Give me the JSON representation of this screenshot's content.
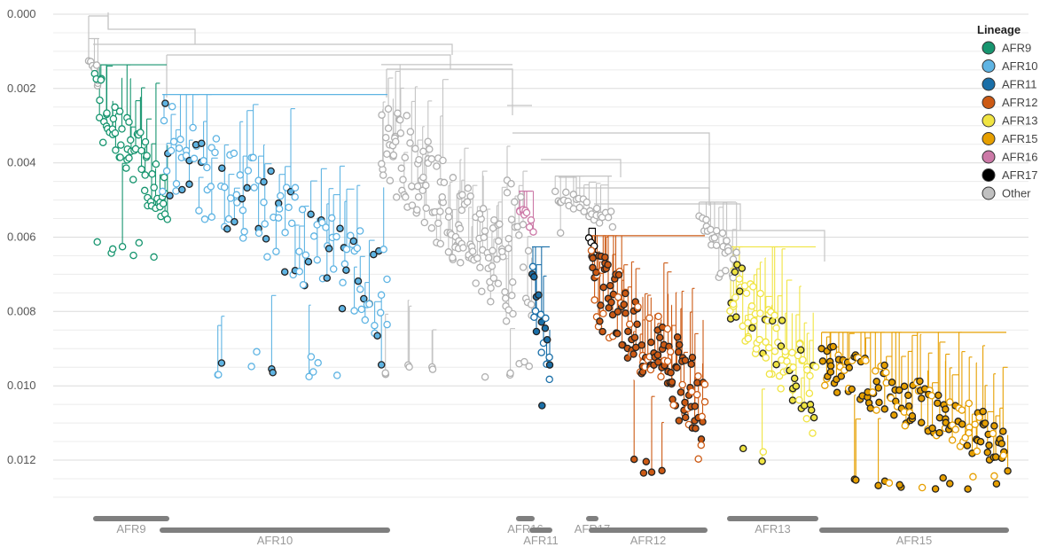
{
  "chart_data": {
    "type": "phylogenetic-tree",
    "y_axis": {
      "orientation": "inverted",
      "lim": [
        0.0,
        0.0137
      ],
      "ticks": [
        0.0,
        0.002,
        0.004,
        0.006,
        0.008,
        0.01,
        0.012
      ],
      "tick_labels": [
        "0.000",
        "0.002",
        "0.004",
        "0.006",
        "0.008",
        "0.010",
        "0.012"
      ],
      "grid": true
    },
    "x_axis": {
      "lim": [
        0,
        1182
      ]
    },
    "legend": {
      "title": "Lineage",
      "placement": "top-right",
      "entries": [
        {
          "name": "AFR9",
          "color": "#17956f"
        },
        {
          "name": "AFR10",
          "color": "#5fb4e3"
        },
        {
          "name": "AFR11",
          "color": "#1a6fa8"
        },
        {
          "name": "AFR12",
          "color": "#cc5a14"
        },
        {
          "name": "AFR13",
          "color": "#f0e442"
        },
        {
          "name": "AFR15",
          "color": "#e69f00"
        },
        {
          "name": "AFR16",
          "color": "#cc79a7"
        },
        {
          "name": "AFR17",
          "color": "#000000"
        },
        {
          "name": "Other",
          "color": "#c0c0c0"
        }
      ]
    },
    "clades": [
      {
        "name": "AFR9",
        "x0": 108,
        "x1": 188,
        "row": 0,
        "color": "#17956f",
        "tip_range": [
          0.0016,
          0.0066
        ],
        "n_tips": 70
      },
      {
        "name": "AFR10",
        "x0": 183,
        "x1": 437,
        "row": 1,
        "color": "#5fb4e3",
        "tip_range": [
          0.0024,
          0.0098
        ],
        "n_tips": 150
      },
      {
        "name": "AFR16",
        "x0": 585,
        "x1": 600,
        "row": 0,
        "color": "#cc79a7",
        "tip_range": [
          0.005,
          0.006
        ],
        "n_tips": 10
      },
      {
        "name": "AFR11",
        "x0": 600,
        "x1": 620,
        "row": 1,
        "color": "#1a6fa8",
        "tip_range": [
          0.0065,
          0.0108
        ],
        "n_tips": 20
      },
      {
        "name": "AFR17",
        "x0": 664,
        "x1": 672,
        "row": 0,
        "color": "#000000",
        "tip_range": [
          0.006,
          0.0067
        ],
        "n_tips": 4
      },
      {
        "name": "AFR12",
        "x0": 667,
        "x1": 795,
        "row": 1,
        "color": "#cc5a14",
        "tip_range": [
          0.0062,
          0.0125
        ],
        "n_tips": 150
      },
      {
        "name": "AFR13",
        "x0": 823,
        "x1": 920,
        "row": 0,
        "color": "#f0e442",
        "tip_range": [
          0.0065,
          0.0121
        ],
        "n_tips": 90
      },
      {
        "name": "AFR15",
        "x0": 927,
        "x1": 1135,
        "row": 1,
        "color": "#e69f00",
        "tip_range": [
          0.0088,
          0.0128
        ],
        "n_tips": 160
      }
    ],
    "other_groups": [
      {
        "x0": 102,
        "x1": 112,
        "tip_range": [
          0.0008,
          0.0022
        ],
        "n_tips": 8
      },
      {
        "x0": 430,
        "x1": 578,
        "tip_range": [
          0.0015,
          0.0098
        ],
        "n_tips": 150
      },
      {
        "x0": 572,
        "x1": 600,
        "tip_range": [
          0.0026,
          0.0097
        ],
        "n_tips": 20
      },
      {
        "x0": 626,
        "x1": 690,
        "tip_range": [
          0.0045,
          0.006
        ],
        "n_tips": 30
      },
      {
        "x0": 790,
        "x1": 830,
        "tip_range": [
          0.0052,
          0.0072
        ],
        "n_tips": 25
      }
    ]
  }
}
